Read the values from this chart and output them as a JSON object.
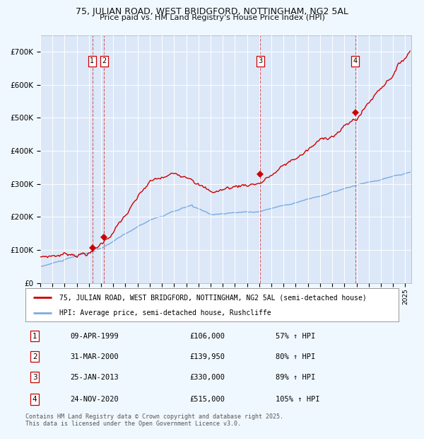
{
  "title": "75, JULIAN ROAD, WEST BRIDGFORD, NOTTINGHAM, NG2 5AL",
  "subtitle": "Price paid vs. HM Land Registry's House Price Index (HPI)",
  "background_color": "#f0f8ff",
  "plot_bg_color": "#dce8f8",
  "transactions": [
    {
      "label": "1",
      "date": "09-APR-1999",
      "price": 106000,
      "hpi_pct": "57% ↑ HPI",
      "x_year": 1999.27
    },
    {
      "label": "2",
      "date": "31-MAR-2000",
      "price": 139950,
      "hpi_pct": "80% ↑ HPI",
      "x_year": 2000.25
    },
    {
      "label": "3",
      "date": "25-JAN-2013",
      "price": 330000,
      "hpi_pct": "89% ↑ HPI",
      "x_year": 2013.07
    },
    {
      "label": "4",
      "date": "24-NOV-2020",
      "price": 515000,
      "hpi_pct": "105% ↑ HPI",
      "x_year": 2020.9
    }
  ],
  "legend_line1": "75, JULIAN ROAD, WEST BRIDGFORD, NOTTINGHAM, NG2 5AL (semi-detached house)",
  "legend_line2": "HPI: Average price, semi-detached house, Rushcliffe",
  "footer": "Contains HM Land Registry data © Crown copyright and database right 2025.\nThis data is licensed under the Open Government Licence v3.0.",
  "xmin": 1995.0,
  "xmax": 2025.5,
  "ymin": 0,
  "ymax": 750000,
  "yticks": [
    0,
    100000,
    200000,
    300000,
    400000,
    500000,
    600000,
    700000
  ],
  "ytick_labels": [
    "£0",
    "£100K",
    "£200K",
    "£300K",
    "£400K",
    "£500K",
    "£600K",
    "£700K"
  ],
  "line_color_red": "#cc0000",
  "line_color_blue": "#7aabe0",
  "vline_color": "#cc0000",
  "marker_color": "#cc0000",
  "grid_color": "#ffffff",
  "title_fontsize": 9,
  "subtitle_fontsize": 8
}
